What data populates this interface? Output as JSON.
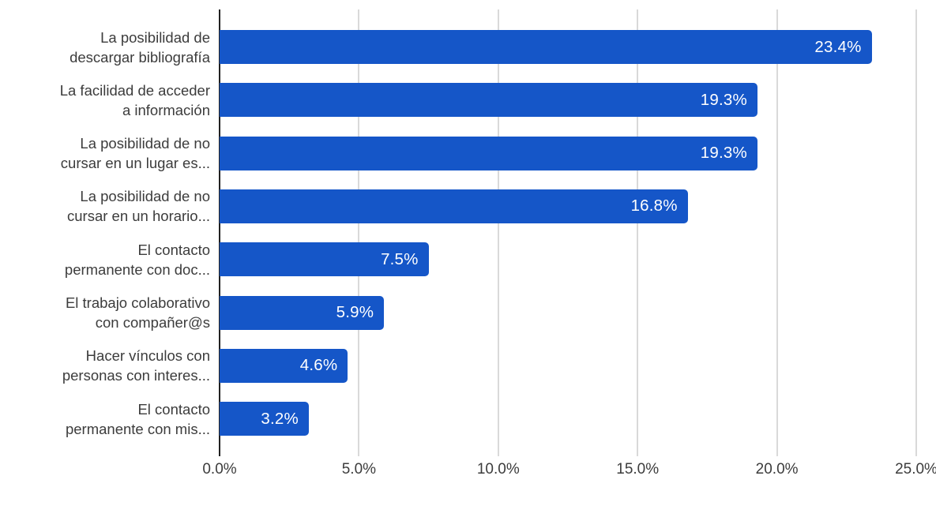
{
  "chart_data": {
    "type": "bar",
    "orientation": "horizontal",
    "title": "",
    "xlabel": "",
    "ylabel": "",
    "categories": [
      "La posibilidad de\ndescargar bibliografía",
      "La facilidad de acceder\na información",
      "La posibilidad de no\ncursar en un lugar es...",
      "La posibilidad de no\ncursar en un horario...",
      "El contacto\npermanente con doc...",
      "El trabajo colaborativo\ncon compañer@s",
      "Hacer vínculos con\npersonas con interes...",
      "El contacto\npermanente con mis..."
    ],
    "values": [
      23.4,
      19.3,
      19.3,
      16.8,
      7.5,
      5.9,
      4.6,
      3.2
    ],
    "value_labels": [
      "23.4%",
      "19.3%",
      "19.3%",
      "16.8%",
      "7.5%",
      "5.9%",
      "4.6%",
      "3.2%"
    ],
    "xlim": [
      0,
      25
    ],
    "x_tick_values": [
      0,
      5,
      10,
      15,
      20,
      25
    ],
    "x_tick_labels": [
      "0.0%",
      "5.0%",
      "10.0%",
      "15.0%",
      "20.0%",
      "25.0%"
    ],
    "grid": "vertical-gridlines-only",
    "legend": "none",
    "colors": {
      "bar": "#1556c8",
      "bar_value_label": "#ffffff",
      "category_label": "#3c3c3c",
      "tick_label": "#3c3c3c",
      "gridline": "#d9d9d9",
      "zero_axis_line": "#212121",
      "background": "#ffffff"
    }
  }
}
